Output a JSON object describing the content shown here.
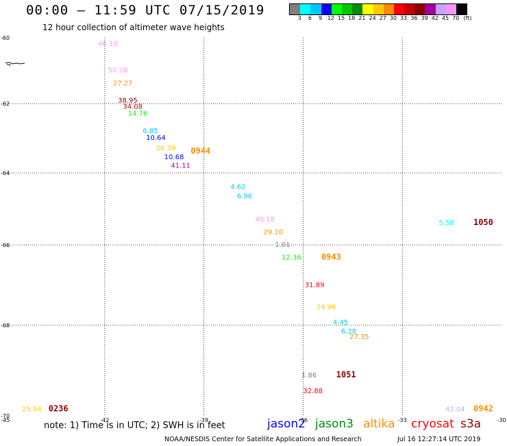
{
  "title": "00:00 — 11:59 UTC 07/15/2019",
  "subtitle": "12 hour collection of altimeter wave heights",
  "scale": {
    "colors": [
      "#7f7f7f",
      "#00ffff",
      "#00c8ff",
      "#0000ff",
      "#00ff00",
      "#00c800",
      "#008c00",
      "#ffff00",
      "#ffc800",
      "#ff8c00",
      "#ff0000",
      "#c80000",
      "#8c0000",
      "#a000a0",
      "#c8a0ff",
      "#ff96ff",
      "#000000"
    ],
    "labels": [
      "3",
      "6",
      "9",
      "12",
      "15",
      "18",
      "21",
      "24",
      "27",
      "30",
      "33",
      "36",
      "39",
      "42",
      "45",
      "70",
      "(ft)"
    ]
  },
  "map": {
    "lon_range": [
      -45,
      -30
    ],
    "lat_range": [
      -70,
      -60
    ],
    "lon_ticks": [
      "-45",
      "-42",
      "-39",
      "-36",
      "-33",
      "-30"
    ],
    "lat_ticks": [
      "-60",
      "-62",
      "-64",
      "-66",
      "-68",
      "-70"
    ],
    "grid": true,
    "grid_style": "dotted"
  },
  "chart_data": {
    "type": "scatter",
    "xlabel": "",
    "ylabel": "",
    "xlim": [
      -45,
      -30
    ],
    "ylim": [
      -70,
      -60
    ],
    "points": [
      {
        "lon": -42.2,
        "lat": -60.25,
        "swh": "46.10",
        "color": "#ff96ff"
      },
      {
        "lon": -41.9,
        "lat": -61.05,
        "swh": "50.28",
        "color": "#ff96ff"
      },
      {
        "lon": -41.75,
        "lat": -61.45,
        "swh": "27.27",
        "color": "#ff8c00"
      },
      {
        "lon": -41.6,
        "lat": -61.97,
        "swh": "38.95",
        "color": "#8c0000"
      },
      {
        "lon": -41.45,
        "lat": -62.15,
        "swh": "34.08",
        "color": "#c80000"
      },
      {
        "lon": -41.3,
        "lat": -62.35,
        "swh": "14.76",
        "color": "#00ff00"
      },
      {
        "lon": -40.85,
        "lat": -62.85,
        "swh": "6.85",
        "color": "#00c8ff"
      },
      {
        "lon": -40.75,
        "lat": -63.05,
        "swh": "10.64",
        "color": "#0000ff"
      },
      {
        "lon": -40.45,
        "lat": -63.35,
        "swh": "26.39",
        "color": "#ffc800"
      },
      {
        "lon": -40.2,
        "lat": -63.6,
        "swh": "10.68",
        "color": "#0000ff"
      },
      {
        "lon": -40.0,
        "lat": -63.85,
        "swh": "41.11",
        "color": "#a000a0"
      },
      {
        "lon": -38.2,
        "lat": -64.45,
        "swh": "4.62",
        "color": "#00c8ff"
      },
      {
        "lon": -38.0,
        "lat": -64.7,
        "swh": "6.96",
        "color": "#00c8ff"
      },
      {
        "lon": -37.45,
        "lat": -65.35,
        "swh": "45.18",
        "color": "#ff96ff"
      },
      {
        "lon": -37.2,
        "lat": -65.7,
        "swh": "29.10",
        "color": "#ff8c00"
      },
      {
        "lon": -36.85,
        "lat": -66.05,
        "swh": "1.01",
        "color": "#7f7f7f"
      },
      {
        "lon": -36.65,
        "lat": -66.37,
        "swh": "12.36",
        "color": "#00ff00"
      },
      {
        "lon": -35.95,
        "lat": -67.05,
        "swh": "31.89",
        "color": "#ff0000"
      },
      {
        "lon": -35.6,
        "lat": -67.6,
        "swh": "24.96",
        "color": "#ffc800"
      },
      {
        "lon": -35.1,
        "lat": -67.98,
        "swh": "4.45",
        "color": "#00c8ff"
      },
      {
        "lon": -34.85,
        "lat": -68.18,
        "swh": "6.28",
        "color": "#00c8ff"
      },
      {
        "lon": -34.6,
        "lat": -68.3,
        "swh": "27.35",
        "color": "#ff8c00"
      },
      {
        "lon": -36.05,
        "lat": -69.15,
        "swh": "1.86",
        "color": "#7f7f7f"
      },
      {
        "lon": -36.0,
        "lat": -69.5,
        "swh": "32.88",
        "color": "#ff0000"
      },
      {
        "lon": -31.9,
        "lat": -65.45,
        "swh": "5.58",
        "color": "#00ffff"
      },
      {
        "lon": -44.5,
        "lat": -69.9,
        "swh": "25.94",
        "color": "#ffc800"
      },
      {
        "lon": -31.7,
        "lat": -69.9,
        "swh": "42.04",
        "color": "#c8a0ff"
      }
    ],
    "pass_times": [
      {
        "lon": -39.4,
        "lat": -63.45,
        "time": "0944",
        "color": "#ff8c00"
      },
      {
        "lon": -35.45,
        "lat": -66.37,
        "time": "0943",
        "color": "#ff8c00"
      },
      {
        "lon": -30.85,
        "lat": -65.45,
        "time": "1050",
        "color": "#8c0000"
      },
      {
        "lon": -35.0,
        "lat": -69.15,
        "time": "1051",
        "color": "#8c0000"
      },
      {
        "lon": -43.7,
        "lat": -69.9,
        "time": "0236",
        "color": "#8c0000"
      },
      {
        "lon": -30.85,
        "lat": -69.9,
        "time": "0942",
        "color": "#ff8c00"
      }
    ]
  },
  "note": "note: 1) Time is in UTC; 2) SWH is in feet",
  "satellites": [
    {
      "name": "jason2",
      "color": "#0000ff"
    },
    {
      "name": "jason3",
      "color": "#008c00"
    },
    {
      "name": "altika",
      "color": "#ff8c00"
    },
    {
      "name": "cryosat",
      "color": "#ff0000"
    },
    {
      "name": "s3a",
      "color": "#8c0000"
    }
  ],
  "credit": "NOAA/NESDIS Center for Satellite Applications and Research",
  "timestamp": "Jul 16 12:27:14 UTC 2019"
}
